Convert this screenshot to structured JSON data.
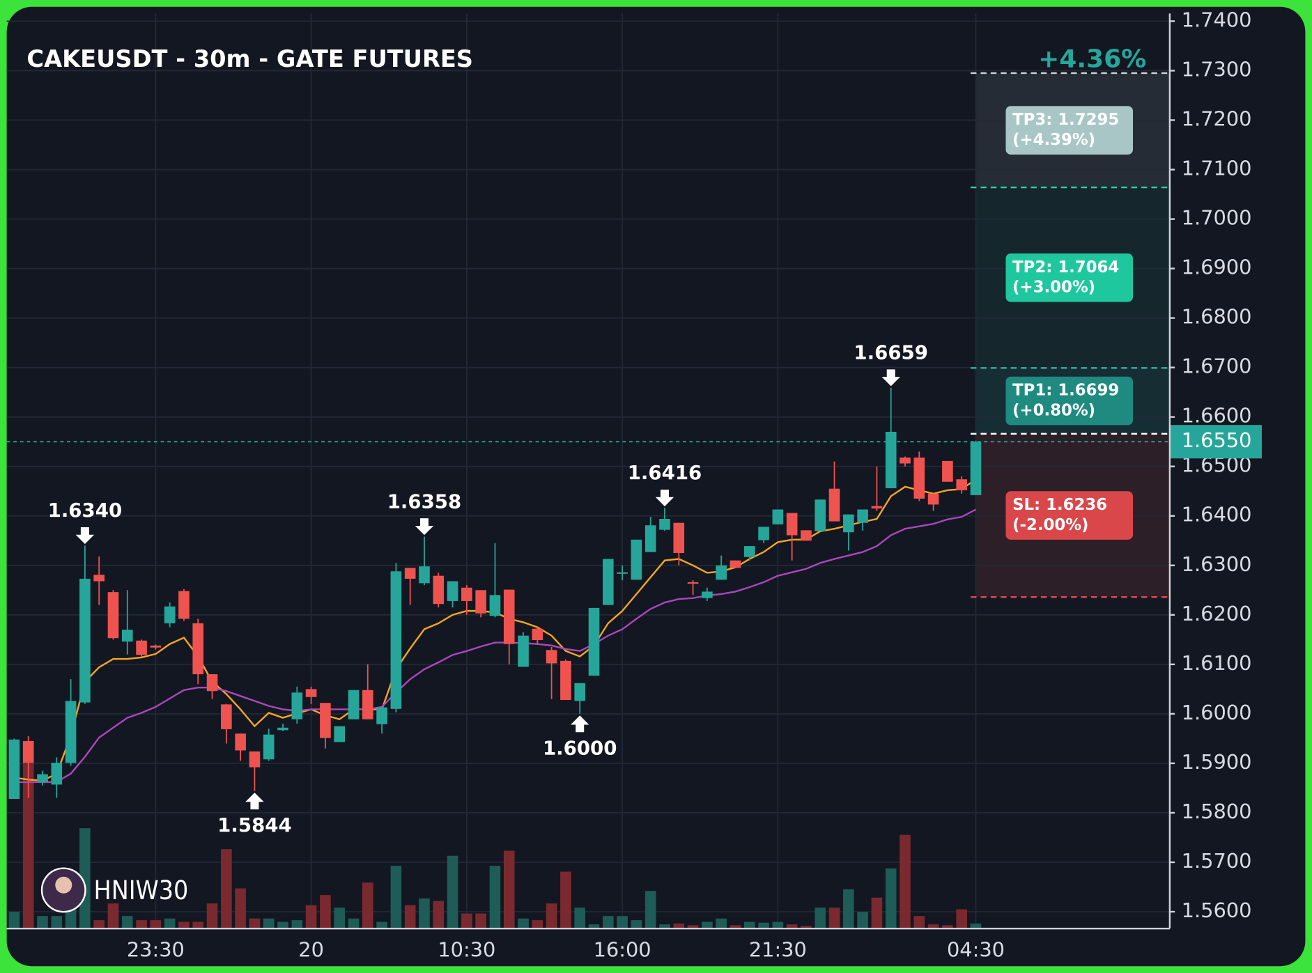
{
  "chart_data": {
    "type": "candlestick",
    "title": "CAKEUSDT - 30m - GATE FUTURES",
    "change_label": "+4.36%",
    "watermark": "HNIW30",
    "categories": [
      null,
      null,
      null,
      null,
      null,
      null,
      null,
      null,
      null,
      null,
      "23:30",
      null,
      null,
      null,
      null,
      null,
      null,
      null,
      null,
      null,
      null,
      "20",
      null,
      null,
      null,
      null,
      null,
      null,
      null,
      null,
      null,
      null,
      "10:30",
      null,
      null,
      null,
      null,
      null,
      null,
      null,
      null,
      null,
      null,
      "16:00",
      null,
      null,
      null,
      null,
      null,
      null,
      null,
      null,
      null,
      null,
      "21:30",
      null,
      null,
      null,
      null,
      null,
      null,
      null,
      null,
      null,
      null,
      null,
      null,
      null,
      "04:30"
    ],
    "open": [
      1.5828,
      1.5945,
      1.5862,
      1.5857,
      1.5901,
      1.6023,
      1.6281,
      1.6246,
      1.6146,
      1.6148,
      1.6138,
      1.6183,
      1.6248,
      1.6183,
      1.608,
      1.6019,
      1.596,
      1.5924,
      1.5908,
      1.5967,
      1.5989,
      1.605,
      1.6022,
      1.5943,
      1.5989,
      1.6048,
      1.5979,
      1.601,
      1.6295,
      1.6264,
      1.6279,
      1.6228,
      1.6255,
      1.625,
      1.6198,
      1.6251,
      1.6095,
      1.6172,
      1.6129,
      1.6107,
      1.6026,
      1.6077,
      1.622,
      1.6283,
      1.6271,
      1.6327,
      1.6372,
      1.6386,
      1.6266,
      1.6234,
      1.6271,
      1.631,
      1.6317,
      1.6351,
      1.6383,
      1.6406,
      1.6371,
      1.6369,
      1.6455,
      1.6367,
      1.6386,
      1.642,
      1.6456,
      1.6518,
      1.6518,
      1.6445,
      1.6511,
      1.6474,
      1.6442
    ],
    "high": [
      1.595,
      1.5955,
      1.5885,
      1.5912,
      1.607,
      1.634,
      1.6318,
      1.625,
      1.625,
      1.615,
      1.614,
      1.6225,
      1.6252,
      1.6192,
      1.608,
      1.602,
      1.596,
      1.5924,
      1.597,
      1.598,
      1.6055,
      1.6055,
      1.6022,
      1.5975,
      1.6048,
      1.61,
      1.6013,
      1.6305,
      1.6295,
      1.6358,
      1.6285,
      1.6268,
      1.626,
      1.625,
      1.6345,
      1.6251,
      1.6165,
      1.6175,
      1.6135,
      1.611,
      1.6062,
      1.6214,
      1.6313,
      1.63,
      1.6352,
      1.6398,
      1.6416,
      1.6386,
      1.627,
      1.6255,
      1.632,
      1.631,
      1.6339,
      1.6378,
      1.6413,
      1.6406,
      1.6371,
      1.6433,
      1.651,
      1.6403,
      1.6413,
      1.65,
      1.6659,
      1.652,
      1.653,
      1.6445,
      1.6511,
      1.648,
      1.6552
    ],
    "low": [
      1.5828,
      1.583,
      1.5855,
      1.583,
      1.5895,
      1.602,
      1.622,
      1.615,
      1.612,
      1.6115,
      1.613,
      1.6175,
      1.6188,
      1.606,
      1.603,
      1.594,
      1.5905,
      1.5844,
      1.5905,
      1.5965,
      1.598,
      1.602,
      1.593,
      1.5943,
      1.5989,
      1.5989,
      1.596,
      1.6003,
      1.622,
      1.626,
      1.6215,
      1.6215,
      1.62,
      1.6195,
      1.6195,
      1.61,
      1.6095,
      1.614,
      1.603,
      1.6028,
      1.6,
      1.6077,
      1.622,
      1.627,
      1.6271,
      1.6327,
      1.637,
      1.63,
      1.624,
      1.6228,
      1.6271,
      1.6295,
      1.631,
      1.6345,
      1.6383,
      1.631,
      1.635,
      1.6369,
      1.6389,
      1.633,
      1.637,
      1.641,
      1.6456,
      1.65,
      1.643,
      1.641,
      1.6469,
      1.6445,
      1.6442
    ],
    "close": [
      1.5948,
      1.5901,
      1.5878,
      1.5901,
      1.6026,
      1.6273,
      1.6268,
      1.6153,
      1.617,
      1.6119,
      1.6134,
      1.6217,
      1.6192,
      1.608,
      1.6046,
      1.5969,
      1.5926,
      1.5892,
      1.5958,
      1.5972,
      1.6043,
      1.6034,
      1.5951,
      1.5975,
      1.6048,
      1.5989,
      1.6013,
      1.6288,
      1.6273,
      1.6298,
      1.6222,
      1.6268,
      1.6228,
      1.6203,
      1.624,
      1.6141,
      1.6158,
      1.6149,
      1.6102,
      1.6028,
      1.6062,
      1.6214,
      1.6313,
      1.6286,
      1.6352,
      1.6381,
      1.6394,
      1.6325,
      1.6263,
      1.6247,
      1.63,
      1.6295,
      1.6339,
      1.6378,
      1.6413,
      1.6361,
      1.635,
      1.6433,
      1.6389,
      1.6403,
      1.6413,
      1.6415,
      1.657,
      1.6506,
      1.6435,
      1.6423,
      1.6469,
      1.6452,
      1.655
    ],
    "volume": [
      20,
      200,
      15,
      15,
      30,
      120,
      10,
      30,
      15,
      10,
      10,
      12,
      8,
      8,
      30,
      95,
      48,
      12,
      12,
      8,
      10,
      28,
      40,
      25,
      12,
      55,
      8,
      75,
      28,
      36,
      33,
      87,
      18,
      18,
      75,
      93,
      12,
      10,
      30,
      68,
      25,
      5,
      15,
      15,
      10,
      45,
      5,
      6,
      4,
      8,
      12,
      4,
      8,
      7,
      8,
      5,
      3,
      25,
      25,
      47,
      20,
      37,
      72,
      112,
      15,
      5,
      4,
      23,
      6
    ],
    "volume_ylim": [
      0,
      300
    ],
    "up_color": "#26a69a",
    "down_color": "#ef5350",
    "volume_up_color": "#1d5c57",
    "volume_down_color": "#7a2a2e",
    "lines": [
      {
        "color": "#f5a623",
        "values": [
          1.5871,
          1.5867,
          1.5865,
          1.5879,
          1.5955,
          1.6065,
          1.6094,
          1.6111,
          1.6111,
          1.6114,
          1.6121,
          1.6141,
          1.6154,
          1.6116,
          1.6065,
          1.604,
          1.6009,
          1.5975,
          1.6002,
          1.5992,
          1.6001,
          1.6009,
          1.5997,
          1.5989,
          1.6009,
          1.6009,
          1.6009,
          1.609,
          1.6132,
          1.6171,
          1.6183,
          1.62,
          1.6208,
          1.6208,
          1.6205,
          1.6192,
          1.6185,
          1.6175,
          1.6158,
          1.6127,
          1.6116,
          1.6138,
          1.6183,
          1.6208,
          1.6242,
          1.6276,
          1.631,
          1.6313,
          1.63,
          1.6285,
          1.6288,
          1.6296,
          1.6313,
          1.6327,
          1.6347,
          1.6352,
          1.6352,
          1.6369,
          1.6374,
          1.6381,
          1.6388,
          1.6394,
          1.644,
          1.6459,
          1.6452,
          1.6445,
          1.6452,
          1.6454,
          1.6474
        ]
      },
      {
        "color": "#ab47bc",
        "values": [
          1.5862,
          1.5862,
          1.5862,
          1.5862,
          1.5879,
          1.5913,
          1.5952,
          1.5972,
          1.5992,
          1.6002,
          1.6014,
          1.6031,
          1.6048,
          1.6053,
          1.6053,
          1.6046,
          1.6036,
          1.6026,
          1.6016,
          1.6009,
          1.6006,
          1.6009,
          1.6009,
          1.6009,
          1.6009,
          1.6009,
          1.6014,
          1.6043,
          1.607,
          1.609,
          1.6104,
          1.6119,
          1.6127,
          1.6136,
          1.6144,
          1.6144,
          1.6143,
          1.6141,
          1.6138,
          1.6131,
          1.6127,
          1.6141,
          1.6158,
          1.6171,
          1.6192,
          1.6212,
          1.6225,
          1.6232,
          1.6234,
          1.6239,
          1.6242,
          1.6247,
          1.6256,
          1.6266,
          1.6279,
          1.6286,
          1.6293,
          1.6305,
          1.6313,
          1.632,
          1.6327,
          1.6339,
          1.6361,
          1.6374,
          1.6379,
          1.6384,
          1.6393,
          1.6398,
          1.6413
        ]
      }
    ],
    "ylim": [
      1.5566,
      1.7429
    ],
    "yticks": [
      {
        "value": 1.74,
        "label": "1.7400"
      },
      {
        "value": 1.73,
        "label": "1.7300"
      },
      {
        "value": 1.72,
        "label": "1.7200"
      },
      {
        "value": 1.71,
        "label": "1.7100"
      },
      {
        "value": 1.7,
        "label": "1.7000"
      },
      {
        "value": 1.69,
        "label": "1.6900"
      },
      {
        "value": 1.68,
        "label": "1.6800"
      },
      {
        "value": 1.67,
        "label": "1.6700"
      },
      {
        "value": 1.66,
        "label": "1.6600"
      },
      {
        "value": 1.65,
        "label": "1.6500"
      },
      {
        "value": 1.64,
        "label": "1.6400"
      },
      {
        "value": 1.63,
        "label": "1.6300"
      },
      {
        "value": 1.62,
        "label": "1.6200"
      },
      {
        "value": 1.61,
        "label": "1.6100"
      },
      {
        "value": 1.6,
        "label": "1.6000"
      },
      {
        "value": 1.59,
        "label": "1.5900"
      },
      {
        "value": 1.58,
        "label": "1.5800"
      },
      {
        "value": 1.57,
        "label": "1.5700"
      },
      {
        "value": 1.56,
        "label": "1.5600"
      }
    ],
    "grid": true,
    "last_price": {
      "value": 1.655,
      "label": "1.6550"
    },
    "last_price_color": "#26a69a",
    "entry": 1.6566,
    "levels": [
      {
        "label": "TP3: 1.7295",
        "pct": "(+4.39%)",
        "value": 1.7295,
        "color": "#a9c6c6",
        "line_color": "#c9d6d6",
        "zone_color": "#262c35"
      },
      {
        "label": "TP2: 1.7064",
        "pct": "(+3.00%)",
        "value": 1.7064,
        "color": "#1fc79e",
        "line_color": "#2bd1aa",
        "zone_color": "#15262d"
      },
      {
        "label": "TP1: 1.6699",
        "pct": "(+0.80%)",
        "value": 1.6699,
        "color": "#1e8a80",
        "line_color": "#2bb5a0",
        "zone_color": "#162d34"
      },
      {
        "label": "SL: 1.6236",
        "pct": "(-2.00%)",
        "value": 1.6236,
        "color": "#d9474a",
        "line_color": "#e0474d",
        "zone_color": "#2c1f27"
      }
    ],
    "annotations": [
      {
        "value": 1.634,
        "label": "1.6340",
        "position": "above"
      },
      {
        "value": 1.5844,
        "label": "1.5844",
        "position": "below"
      },
      {
        "value": 1.6358,
        "label": "1.6358",
        "position": "above"
      },
      {
        "value": 1.6,
        "label": "1.6000",
        "position": "below"
      },
      {
        "value": 1.6416,
        "label": "1.6416",
        "position": "above"
      },
      {
        "value": 1.6659,
        "label": "1.6659",
        "position": "above"
      }
    ]
  }
}
